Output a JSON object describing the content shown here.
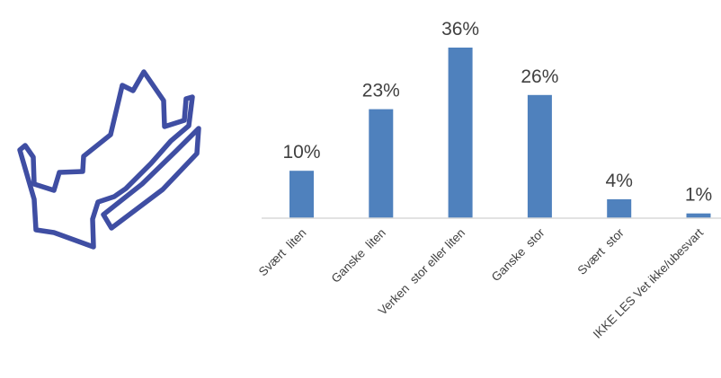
{
  "chart_data": {
    "type": "bar",
    "categories": [
      "Svært  liten",
      "Ganske  liten",
      "Verken  stor eller liten",
      "Ganske  stor",
      "Svært  stor",
      "IKKE LES Vet ikke/ubesvart"
    ],
    "values": [
      10,
      23,
      36,
      26,
      4,
      1
    ],
    "data_labels": [
      "10%",
      "23%",
      "36%",
      "26%",
      "4%",
      "1%"
    ],
    "unit": "%",
    "ylim": [
      0,
      36
    ],
    "grid": false,
    "legend": "none",
    "bar_color": "#4f81bd",
    "axis_color": "#d9d9d9",
    "text_color": "#404040"
  },
  "logo": {
    "icon": "norway-map-outline-icon",
    "color": "#3f4ea3"
  }
}
